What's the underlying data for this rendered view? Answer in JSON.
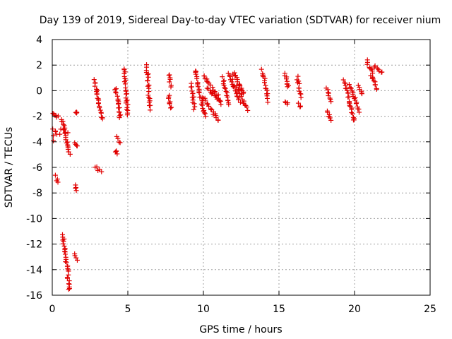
{
  "chart_data": {
    "type": "scatter",
    "title": "Day 139 of 2019, Sidereal Day-to-day VTEC variation (SDTVAR) for receiver nium",
    "xlabel": "GPS time / hours",
    "ylabel": "SDTVAR / TECUs",
    "xlim": [
      0,
      25
    ],
    "ylim": [
      -16,
      4
    ],
    "xticks": [
      0,
      5,
      10,
      15,
      20,
      25
    ],
    "yticks": [
      4,
      2,
      0,
      -2,
      -4,
      -6,
      -8,
      -10,
      -12,
      -14,
      -16
    ],
    "grid": true,
    "marker": "plus",
    "color": "#e00000",
    "segments": [
      {
        "x0": 0.0,
        "x1": 0.05,
        "y0": -3.0,
        "y1": -4.1
      },
      {
        "x0": 0.05,
        "x1": 0.4,
        "y0": -1.7,
        "y1": -2.1
      },
      {
        "x0": 0.05,
        "x1": 0.45,
        "y0": -3.0,
        "y1": -3.4
      },
      {
        "x0": 0.25,
        "x1": 0.4,
        "y0": -6.7,
        "y1": -7.2
      },
      {
        "x0": 0.65,
        "x1": 1.15,
        "y0": -2.2,
        "y1": -5.0
      },
      {
        "x0": 0.6,
        "x1": 1.0,
        "y0": -3.0,
        "y1": -3.3
      },
      {
        "x0": 0.7,
        "x1": 1.15,
        "y0": -11.2,
        "y1": -15.6
      },
      {
        "x0": 1.55,
        "x1": 1.65,
        "y0": -1.6,
        "y1": -1.8
      },
      {
        "x0": 1.5,
        "x1": 1.65,
        "y0": -4.2,
        "y1": -4.4
      },
      {
        "x0": 1.5,
        "x1": 1.65,
        "y0": -7.4,
        "y1": -7.8
      },
      {
        "x0": 1.5,
        "x1": 1.65,
        "y0": -12.8,
        "y1": -13.3
      },
      {
        "x0": 2.8,
        "x1": 3.3,
        "y0": 0.8,
        "y1": -2.3
      },
      {
        "x0": 2.8,
        "x1": 3.3,
        "y0": -6.0,
        "y1": -6.3
      },
      {
        "x0": 4.2,
        "x1": 4.5,
        "y0": 0.2,
        "y1": -2.2
      },
      {
        "x0": 4.3,
        "x1": 4.45,
        "y0": -3.7,
        "y1": -4.0
      },
      {
        "x0": 4.2,
        "x1": 4.3,
        "y0": -4.7,
        "y1": -4.9
      },
      {
        "x0": 4.75,
        "x1": 5.0,
        "y0": 1.7,
        "y1": -1.9
      },
      {
        "x0": 6.25,
        "x1": 6.45,
        "y0": 2.0,
        "y1": -1.4
      },
      {
        "x0": 7.7,
        "x1": 7.85,
        "y0": 1.3,
        "y1": 0.3
      },
      {
        "x0": 7.7,
        "x1": 7.85,
        "y0": -0.3,
        "y1": -1.4
      },
      {
        "x0": 9.2,
        "x1": 9.4,
        "y0": 0.5,
        "y1": -1.4
      },
      {
        "x0": 9.45,
        "x1": 10.1,
        "y0": 1.6,
        "y1": -2.0
      },
      {
        "x0": 10.0,
        "x1": 11.0,
        "y0": 1.2,
        "y1": -0.5
      },
      {
        "x0": 10.0,
        "x1": 11.0,
        "y0": -0.5,
        "y1": -2.3
      },
      {
        "x0": 10.3,
        "x1": 11.2,
        "y0": 0.2,
        "y1": -1.0
      },
      {
        "x0": 11.3,
        "x1": 11.7,
        "y0": 1.0,
        "y1": -1.2
      },
      {
        "x0": 11.7,
        "x1": 12.4,
        "y0": 1.3,
        "y1": -0.9
      },
      {
        "x0": 12.0,
        "x1": 12.7,
        "y0": 1.4,
        "y1": -0.2
      },
      {
        "x0": 12.2,
        "x1": 12.9,
        "y0": 0.4,
        "y1": -1.5
      },
      {
        "x0": 13.9,
        "x1": 14.3,
        "y0": 1.6,
        "y1": -0.8
      },
      {
        "x0": 15.4,
        "x1": 15.6,
        "y0": 1.4,
        "y1": 0.2
      },
      {
        "x0": 15.4,
        "x1": 15.6,
        "y0": -0.8,
        "y1": -1.1
      },
      {
        "x0": 16.2,
        "x1": 16.45,
        "y0": 1.1,
        "y1": -0.5
      },
      {
        "x0": 16.3,
        "x1": 16.4,
        "y0": -1.1,
        "y1": -1.3
      },
      {
        "x0": 18.15,
        "x1": 18.45,
        "y0": 0.2,
        "y1": -0.8
      },
      {
        "x0": 18.2,
        "x1": 18.45,
        "y0": -1.5,
        "y1": -2.3
      },
      {
        "x0": 19.3,
        "x1": 20.0,
        "y0": 0.8,
        "y1": -2.4
      },
      {
        "x0": 19.7,
        "x1": 20.3,
        "y0": 0.4,
        "y1": -1.6
      },
      {
        "x0": 20.3,
        "x1": 20.5,
        "y0": 0.4,
        "y1": -0.3
      },
      {
        "x0": 20.8,
        "x1": 21.2,
        "y0": 2.3,
        "y1": 1.3
      },
      {
        "x0": 21.1,
        "x1": 21.5,
        "y0": 1.3,
        "y1": 0.1
      },
      {
        "x0": 21.3,
        "x1": 21.8,
        "y0": 2.0,
        "y1": 1.4
      }
    ]
  }
}
